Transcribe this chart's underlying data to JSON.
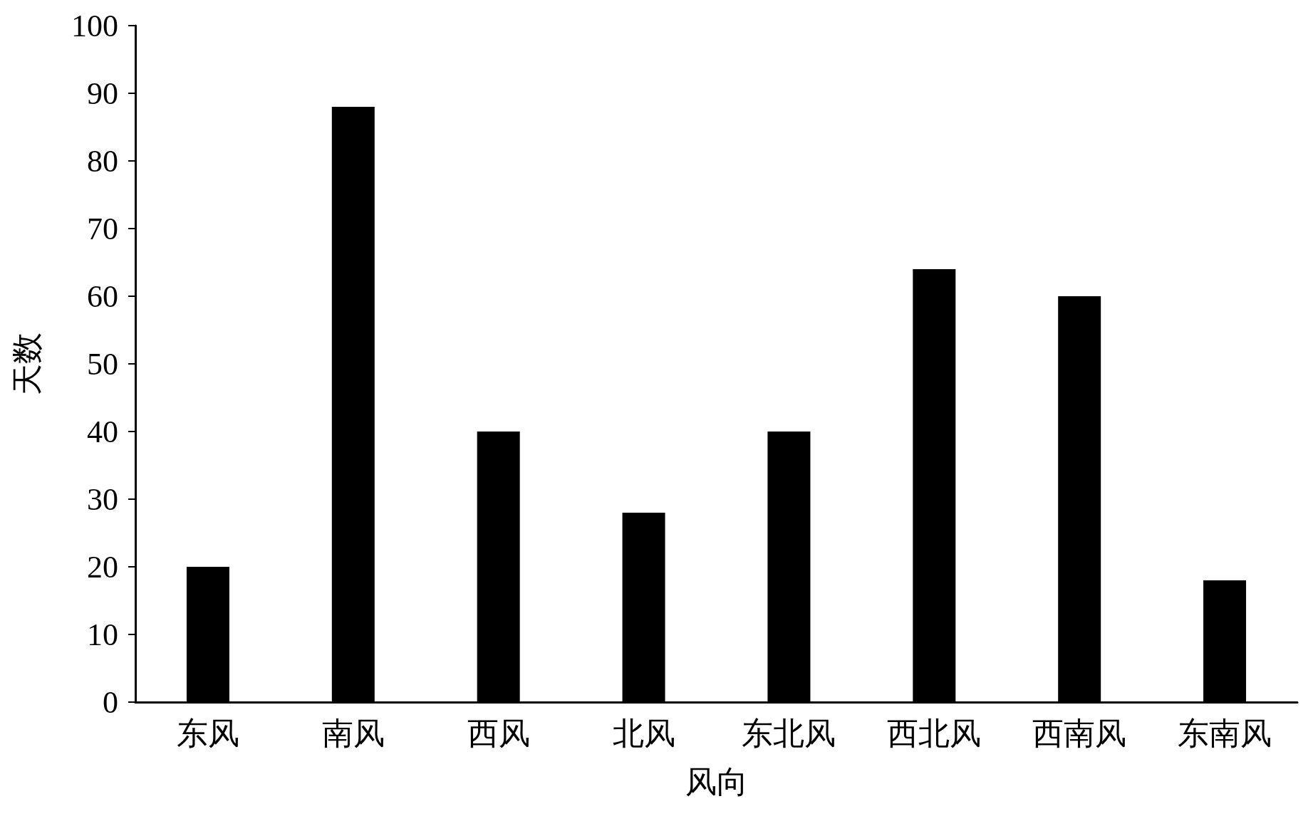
{
  "chart_data": {
    "type": "bar",
    "xlabel": "风向",
    "ylabel": "天数",
    "categories": [
      "东风",
      "南风",
      "西风",
      "北风",
      "东北风",
      "西北风",
      "西南风",
      "东南风"
    ],
    "values": [
      20,
      88,
      40,
      28,
      40,
      64,
      60,
      18
    ],
    "color": "#000000",
    "ylim": [
      0,
      100
    ],
    "yticks": [
      0,
      10,
      20,
      30,
      40,
      50,
      60,
      70,
      80,
      90,
      100
    ],
    "grid": false
  }
}
